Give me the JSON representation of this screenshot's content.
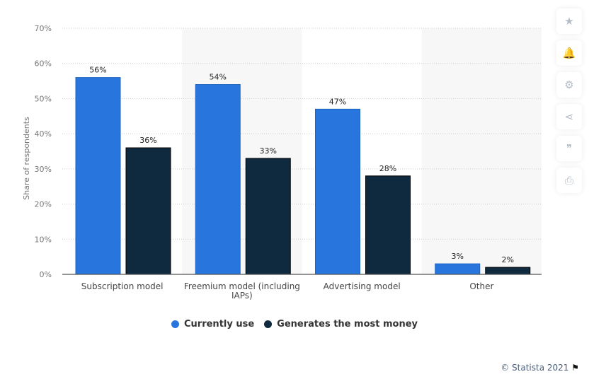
{
  "chart_data": {
    "type": "bar",
    "ylabel": "Share of respondents",
    "ylim": [
      0,
      70
    ],
    "yticks": [
      "0%",
      "10%",
      "20%",
      "30%",
      "40%",
      "50%",
      "60%",
      "70%"
    ],
    "grid": true,
    "legend_placement": "bottom",
    "categories": [
      "Subscription model",
      "Freemium model (including IAPs)",
      "Advertising model",
      "Other"
    ],
    "series": [
      {
        "name": "Currently use",
        "color": "#2876dd",
        "values": [
          56,
          54,
          47,
          3
        ],
        "labels": [
          "56%",
          "54%",
          "47%",
          "3%"
        ]
      },
      {
        "name": "Generates the most money",
        "color": "#0f2a3f",
        "values": [
          36,
          33,
          28,
          2
        ],
        "labels": [
          "36%",
          "33%",
          "28%",
          "2%"
        ]
      }
    ]
  },
  "sidebar": {
    "icons": [
      "star-icon",
      "bell-icon",
      "gear-icon",
      "share-icon",
      "quote-icon",
      "print-icon"
    ],
    "glyphs": [
      "★",
      "🔔",
      "⚙",
      "⋖",
      "❞",
      "⎙"
    ]
  },
  "credit": "© Statista 2021",
  "credit_icon": "flag-icon"
}
